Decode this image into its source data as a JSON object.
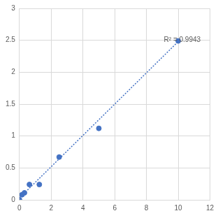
{
  "chart_data": {
    "type": "scatter",
    "x": [
      0,
      0.156,
      0.312,
      0.625,
      1.25,
      2.5,
      5,
      10
    ],
    "values": [
      0.0,
      0.08,
      0.11,
      0.24,
      0.24,
      0.67,
      1.12,
      2.49
    ],
    "color": "#4472c4",
    "marker": "circle",
    "trendline": {
      "x": [
        0,
        10
      ],
      "values": [
        0.03,
        2.48
      ],
      "line_style": "dotted"
    },
    "annotations": [
      {
        "text": "R² = 0.9943",
        "x": 9.1,
        "y": 2.5
      }
    ],
    "xlim": [
      0,
      12
    ],
    "xticks": [
      0,
      2,
      4,
      6,
      8,
      10,
      12
    ],
    "ylim": [
      0,
      3
    ],
    "yticks": [
      0,
      0.5,
      1,
      1.5,
      2,
      2.5,
      3
    ],
    "grid": true
  }
}
